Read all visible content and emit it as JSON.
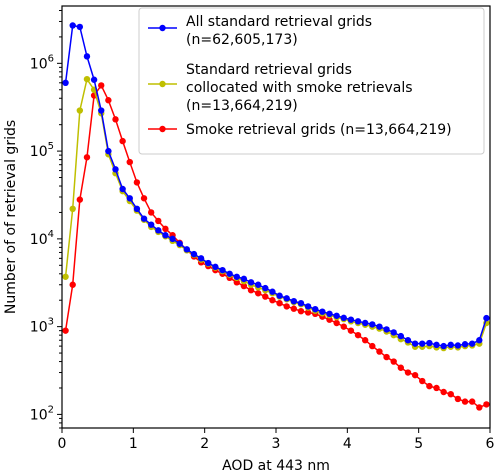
{
  "chart_data": {
    "type": "line",
    "xlabel": "AOD at 443 nm",
    "ylabel": "Number of of retrieval grids",
    "xlim": [
      0,
      6
    ],
    "ylim": [
      70,
      4500000
    ],
    "yscale": "log",
    "xticks": [
      0,
      1,
      2,
      3,
      4,
      5,
      6
    ],
    "yticks": [
      {
        "base": "10",
        "exp": "2",
        "value": 100
      },
      {
        "base": "10",
        "exp": "3",
        "value": 1000
      },
      {
        "base": "10",
        "exp": "4",
        "value": 10000
      },
      {
        "base": "10",
        "exp": "5",
        "value": 100000
      },
      {
        "base": "10",
        "exp": "6",
        "value": 1000000
      }
    ],
    "grid": false,
    "legend_position": "top-right",
    "series": [
      {
        "name": "All standard retrieval grids (n=62,605,173)",
        "legend_lines": [
          "All standard retrieval grids",
          "(n=62,605,173)"
        ],
        "color": "#0000ff",
        "x": [
          0.05,
          0.15,
          0.25,
          0.35,
          0.45,
          0.55,
          0.65,
          0.75,
          0.85,
          0.95,
          1.05,
          1.15,
          1.25,
          1.35,
          1.45,
          1.55,
          1.65,
          1.75,
          1.85,
          1.95,
          2.05,
          2.15,
          2.25,
          2.35,
          2.45,
          2.55,
          2.65,
          2.75,
          2.85,
          2.95,
          3.05,
          3.15,
          3.25,
          3.35,
          3.45,
          3.55,
          3.65,
          3.75,
          3.85,
          3.95,
          4.05,
          4.15,
          4.25,
          4.35,
          4.45,
          4.55,
          4.65,
          4.75,
          4.85,
          4.95,
          5.05,
          5.15,
          5.25,
          5.35,
          5.45,
          5.55,
          5.65,
          5.75,
          5.85,
          5.95
        ],
        "y": [
          600000,
          2700000,
          2600000,
          1200000,
          650000,
          290000,
          100000,
          62000,
          37000,
          29000,
          22000,
          17000,
          14500,
          12500,
          11000,
          10000,
          8800,
          7600,
          6700,
          6000,
          5300,
          4800,
          4400,
          4000,
          3700,
          3500,
          3200,
          3000,
          2750,
          2500,
          2250,
          2100,
          1950,
          1850,
          1700,
          1580,
          1480,
          1400,
          1330,
          1260,
          1200,
          1150,
          1100,
          1060,
          1000,
          930,
          860,
          780,
          700,
          640,
          640,
          650,
          620,
          600,
          620,
          610,
          630,
          640,
          700,
          1250
        ]
      },
      {
        "name": "Standard retrieval grids collocated with smoke retrievals (n=13,664,219)",
        "legend_lines": [
          "Standard retrieval grids",
          "collocated with smoke retrievals",
          "(n=13,664,219)"
        ],
        "color": "#bfbf00",
        "x": [
          0.05,
          0.15,
          0.25,
          0.35,
          0.45,
          0.55,
          0.65,
          0.75,
          0.85,
          0.95,
          1.05,
          1.15,
          1.25,
          1.35,
          1.45,
          1.55,
          1.65,
          1.75,
          1.85,
          1.95,
          2.05,
          2.15,
          2.25,
          2.35,
          2.45,
          2.55,
          2.65,
          2.75,
          2.85,
          2.95,
          3.05,
          3.15,
          3.25,
          3.35,
          3.45,
          3.55,
          3.65,
          3.75,
          3.85,
          3.95,
          4.05,
          4.15,
          4.25,
          4.35,
          4.45,
          4.55,
          4.65,
          4.75,
          4.85,
          4.95,
          5.05,
          5.15,
          5.25,
          5.35,
          5.45,
          5.55,
          5.65,
          5.75,
          5.85,
          5.95
        ],
        "y": [
          3700,
          22000,
          290000,
          660000,
          500000,
          270000,
          92000,
          56000,
          35000,
          27000,
          21000,
          16500,
          13700,
          12000,
          10700,
          9500,
          8500,
          7400,
          6600,
          5800,
          5200,
          4700,
          4300,
          3900,
          3600,
          3300,
          3000,
          2800,
          2600,
          2400,
          2200,
          2050,
          1900,
          1800,
          1650,
          1520,
          1420,
          1350,
          1280,
          1220,
          1150,
          1100,
          1050,
          1000,
          950,
          880,
          800,
          720,
          660,
          590,
          590,
          600,
          580,
          570,
          590,
          580,
          600,
          610,
          640,
          1100
        ]
      },
      {
        "name": "Smoke retrieval grids (n=13,664,219)",
        "legend_lines": [
          "Smoke retrieval grids (n=13,664,219)"
        ],
        "color": "#ff0000",
        "x": [
          0.05,
          0.15,
          0.25,
          0.35,
          0.45,
          0.55,
          0.65,
          0.75,
          0.85,
          0.95,
          1.05,
          1.15,
          1.25,
          1.35,
          1.45,
          1.55,
          1.65,
          1.75,
          1.85,
          1.95,
          2.05,
          2.15,
          2.25,
          2.35,
          2.45,
          2.55,
          2.65,
          2.75,
          2.85,
          2.95,
          3.05,
          3.15,
          3.25,
          3.35,
          3.45,
          3.55,
          3.65,
          3.75,
          3.85,
          3.95,
          4.05,
          4.15,
          4.25,
          4.35,
          4.45,
          4.55,
          4.65,
          4.75,
          4.85,
          4.95,
          5.05,
          5.15,
          5.25,
          5.35,
          5.45,
          5.55,
          5.65,
          5.75,
          5.85,
          5.95
        ],
        "y": [
          900,
          3000,
          28000,
          85000,
          430000,
          560000,
          380000,
          230000,
          130000,
          75000,
          44000,
          29000,
          20000,
          16000,
          13000,
          11000,
          9000,
          7500,
          6300,
          5400,
          4900,
          4400,
          4000,
          3600,
          3200,
          2900,
          2600,
          2400,
          2200,
          2000,
          1850,
          1700,
          1600,
          1500,
          1450,
          1400,
          1300,
          1200,
          1100,
          1000,
          900,
          800,
          700,
          600,
          520,
          450,
          400,
          340,
          300,
          280,
          240,
          210,
          200,
          180,
          170,
          150,
          140,
          140,
          120,
          130
        ]
      }
    ]
  }
}
